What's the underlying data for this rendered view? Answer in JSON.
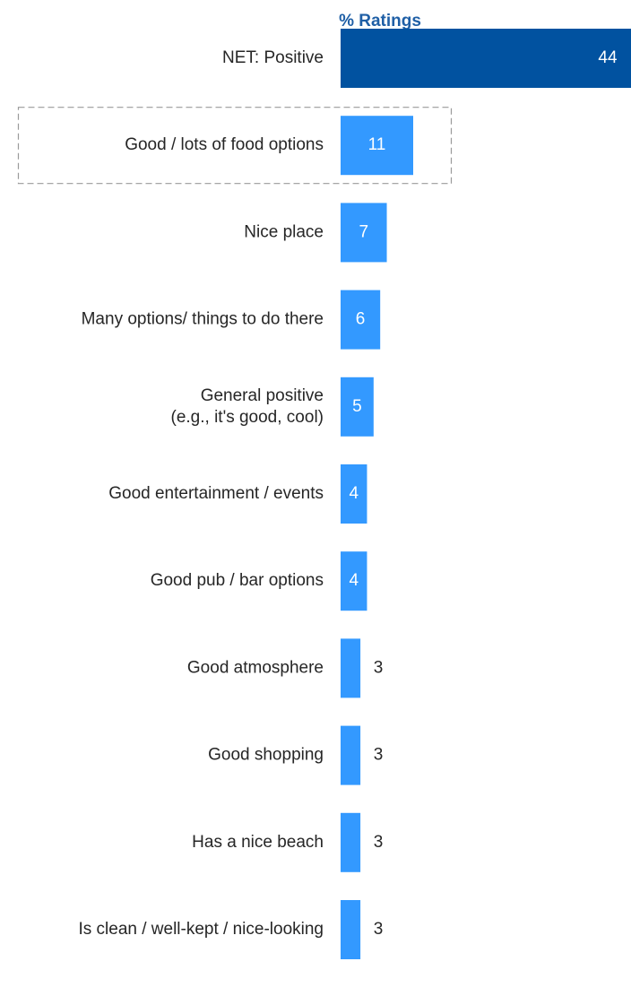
{
  "chart_data": {
    "type": "bar",
    "orientation": "horizontal",
    "title": "% Ratings",
    "categories": [
      "NET: Positive",
      "Good / lots of food options",
      "Nice place",
      "Many options/ things to do there",
      "General positive\n(e.g., it's good, cool)",
      "Good entertainment / events",
      "Good pub / bar options",
      "Good atmosphere",
      "Good shopping",
      "Has a nice beach",
      "Is clean / well-kept / nice-looking"
    ],
    "values": [
      44,
      11,
      7,
      6,
      5,
      4,
      4,
      3,
      3,
      3,
      3
    ],
    "highlighted_category": "Good / lots of food options",
    "xlim": [
      0,
      44
    ],
    "grid": false,
    "legend": "none"
  },
  "colors": {
    "net_bar": "#0152A0",
    "bar": "#3399FF",
    "title": "#1F5FA6",
    "label": "#262626",
    "value_inside": "#FFFFFF",
    "value_outside": "#262626",
    "highlight_border": "#9A9A9A"
  }
}
